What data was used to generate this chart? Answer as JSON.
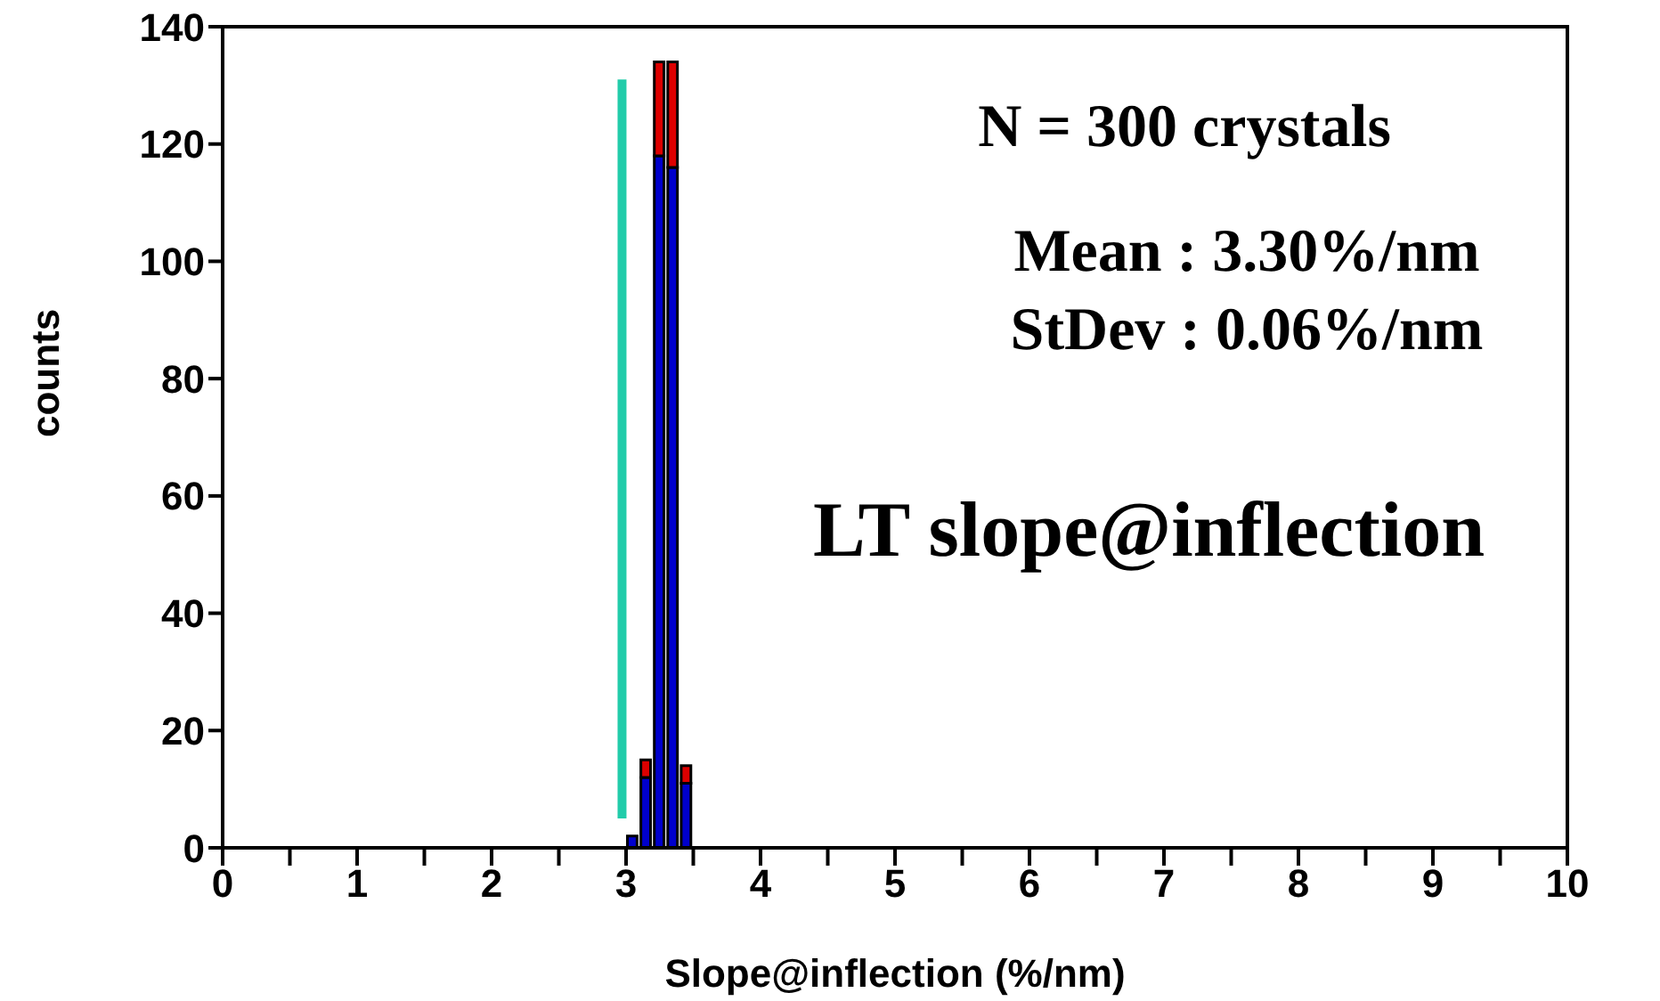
{
  "chart_data": {
    "type": "bar",
    "title": "LT slope@inflection",
    "xlabel": "Slope@inflection (%/nm)",
    "ylabel": "counts",
    "annotations": [
      "N = 300 crystals",
      "Mean : 3.30%/nm",
      "StDev : 0.06%/nm"
    ],
    "x": [
      3.05,
      3.15,
      3.25,
      3.35,
      3.45
    ],
    "stacked": true,
    "series": [
      {
        "color": "#0000cc",
        "values": [
          2,
          12,
          118,
          116,
          11
        ]
      },
      {
        "color": "#dd0000",
        "values": [
          0,
          3,
          16,
          18,
          3
        ]
      },
      {
        "type": "line",
        "color": "#22ccaa",
        "x": [
          2.97,
          2.97
        ],
        "values": [
          5,
          131
        ]
      }
    ],
    "xlim": [
      0,
      10
    ],
    "xticks": [
      0,
      {
        "value": 0.5,
        "label": null
      },
      1,
      {
        "value": 1.5,
        "label": null
      },
      2,
      {
        "value": 2.5,
        "label": null
      },
      3,
      {
        "value": 3.5,
        "label": null
      },
      4,
      {
        "value": 4.5,
        "label": null
      },
      5,
      {
        "value": 5.5,
        "label": null
      },
      6,
      {
        "value": 6.5,
        "label": null
      },
      7,
      {
        "value": 7.5,
        "label": null
      },
      8,
      {
        "value": 8.5,
        "label": null
      },
      9,
      {
        "value": 9.5,
        "label": null
      },
      10
    ],
    "ylim": [
      0,
      140
    ],
    "yticks": [
      0,
      20,
      40,
      60,
      80,
      100,
      120,
      140
    ],
    "grid": false,
    "legend": false
  }
}
